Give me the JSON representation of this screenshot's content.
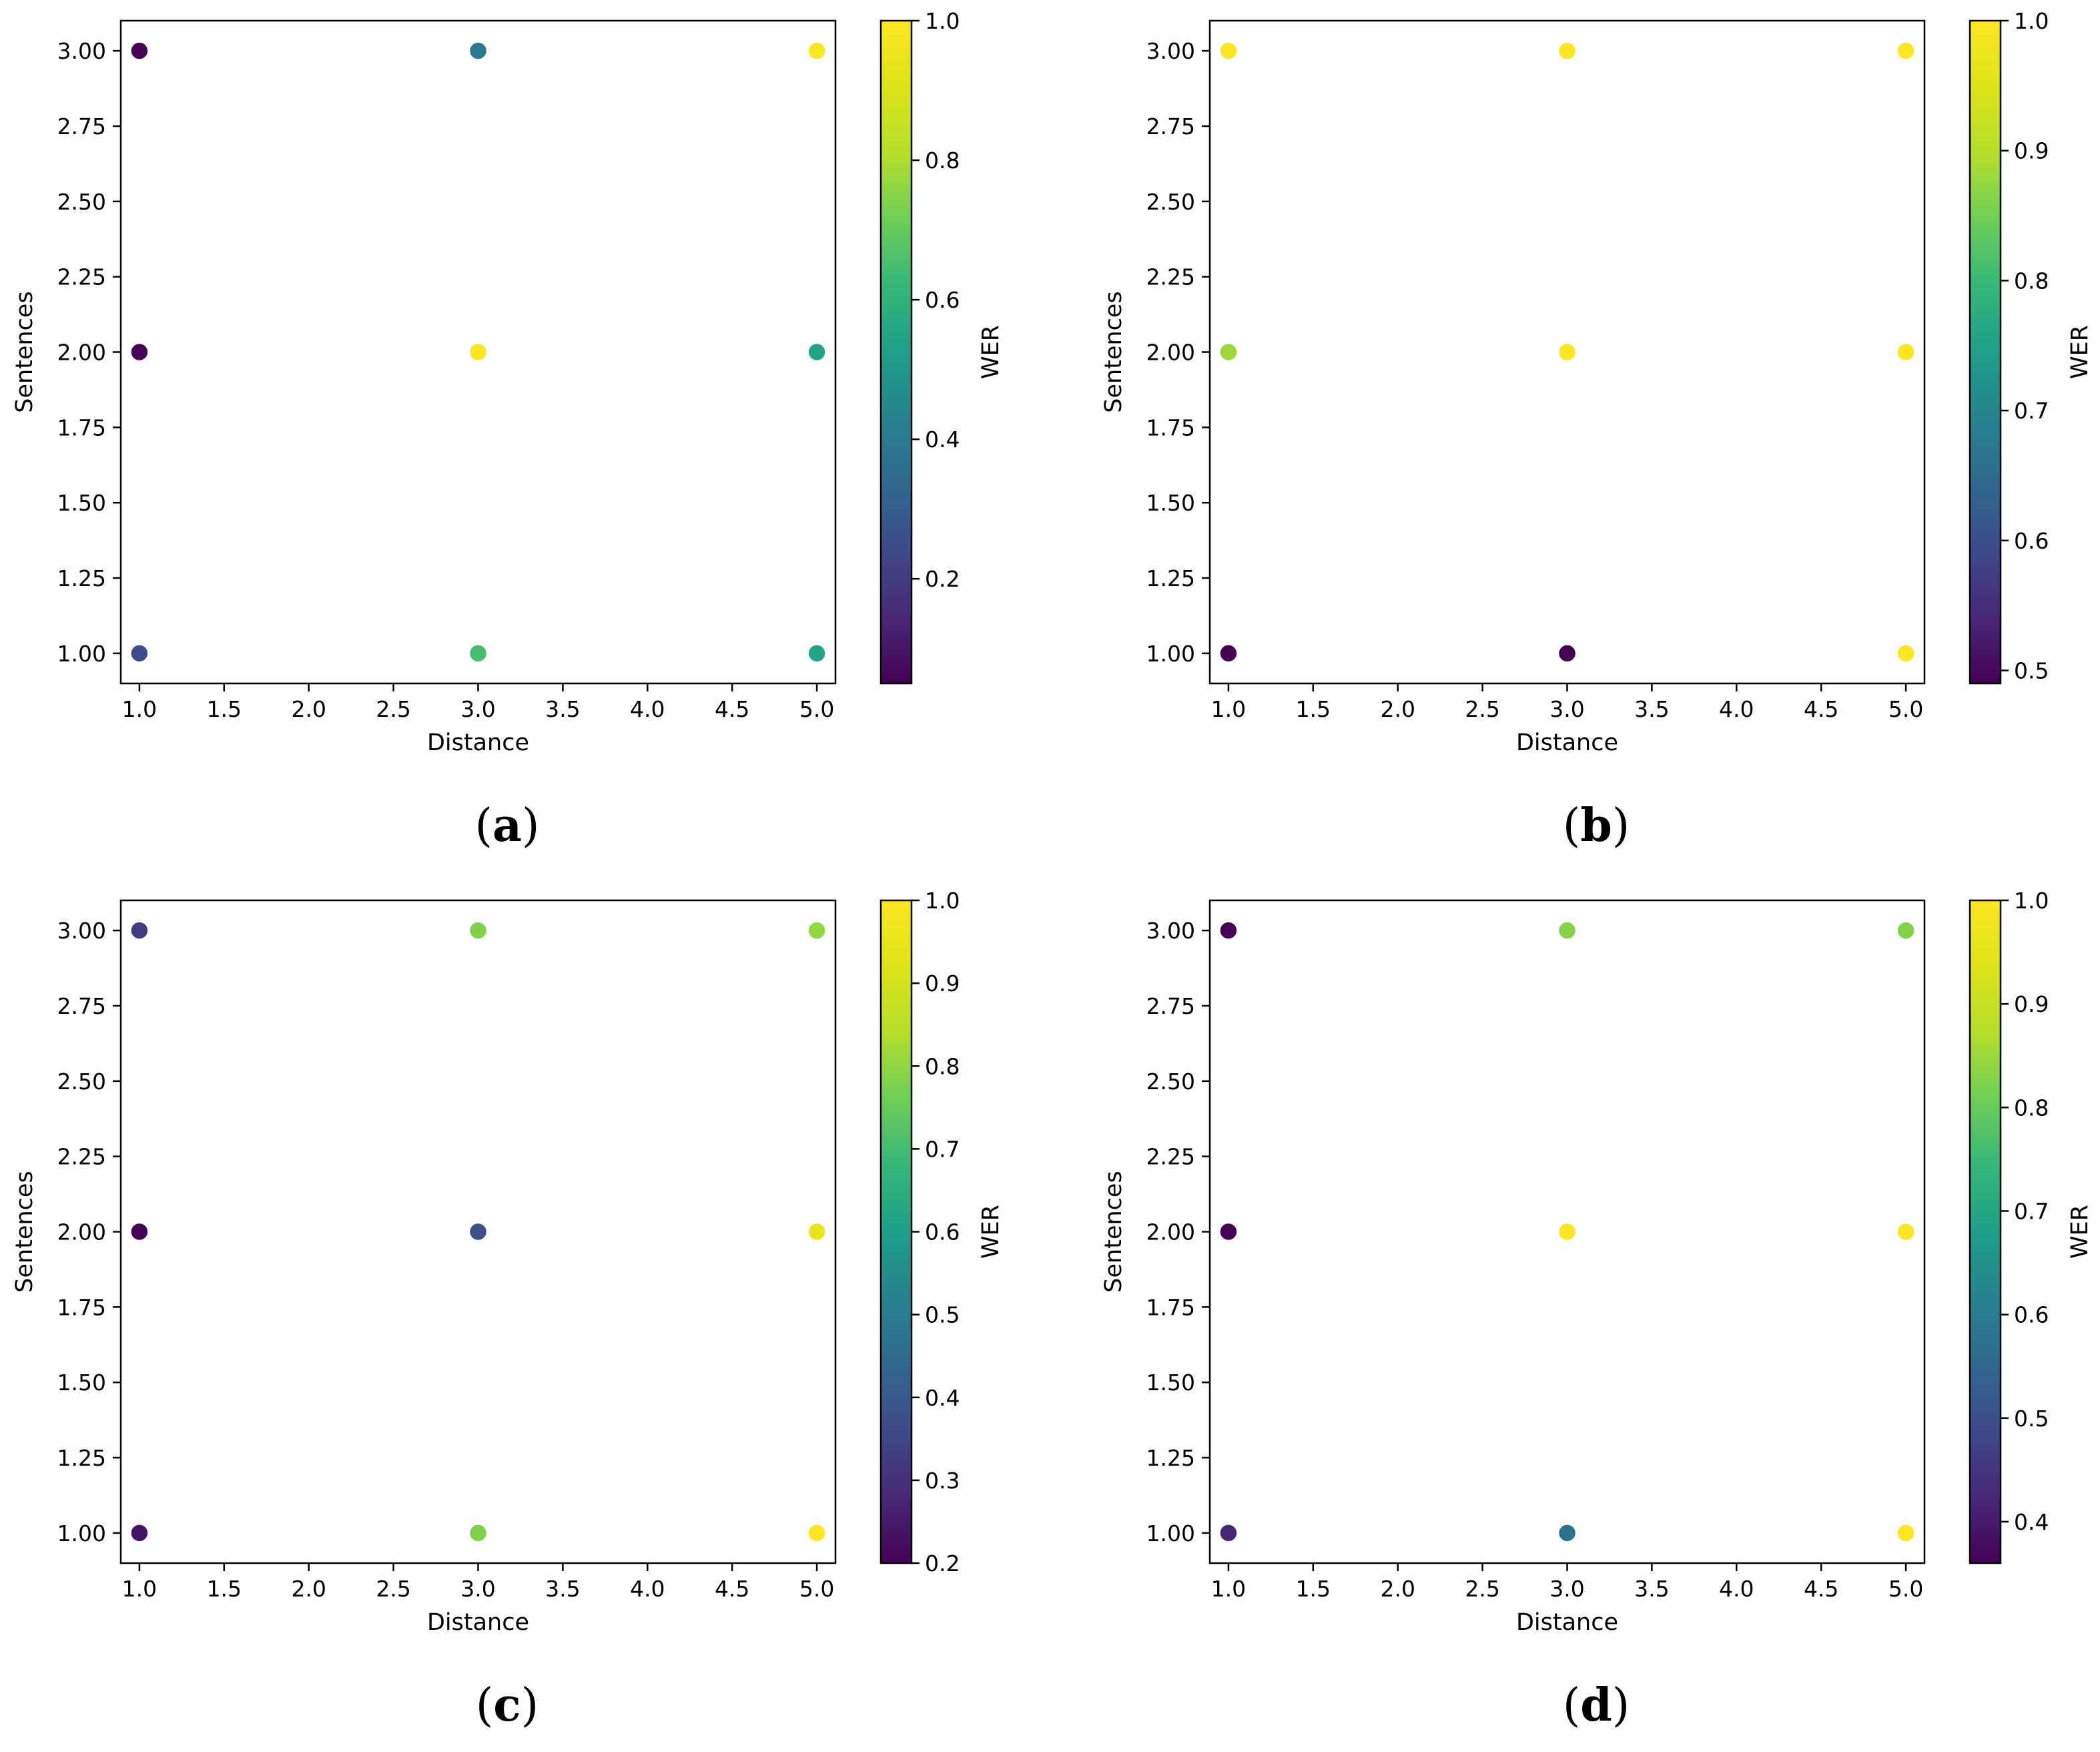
{
  "colors": {
    "background": "#ffffff",
    "axes": "#000000",
    "colormap": "viridis"
  },
  "chart_data": [
    {
      "type": "scatter",
      "caption": "(a)",
      "caption_letter": "a",
      "xlabel": "Distance",
      "ylabel": "Sentences",
      "colorbar_label": "WER",
      "xlim": [
        0.89,
        5.11
      ],
      "ylim": [
        0.9,
        3.1
      ],
      "xticks": [
        1.0,
        1.5,
        2.0,
        2.5,
        3.0,
        3.5,
        4.0,
        4.5,
        5.0
      ],
      "xtick_labels": [
        "1.0",
        "1.5",
        "2.0",
        "2.5",
        "3.0",
        "3.5",
        "4.0",
        "4.5",
        "5.0"
      ],
      "yticks": [
        1.0,
        1.25,
        1.5,
        1.75,
        2.0,
        2.25,
        2.5,
        2.75,
        3.0
      ],
      "ytick_labels": [
        "1.00",
        "1.25",
        "1.50",
        "1.75",
        "2.00",
        "2.25",
        "2.50",
        "2.75",
        "3.00"
      ],
      "clim": [
        0.05,
        1.0
      ],
      "cticks": [
        0.2,
        0.4,
        0.6,
        0.8,
        1.0
      ],
      "ctick_labels": [
        "0.2",
        "0.4",
        "0.6",
        "0.8",
        "1.0"
      ],
      "points": [
        {
          "x": 1,
          "y": 3,
          "wer": 0.05
        },
        {
          "x": 1,
          "y": 2,
          "wer": 0.05
        },
        {
          "x": 1,
          "y": 1,
          "wer": 0.25
        },
        {
          "x": 3,
          "y": 3,
          "wer": 0.4
        },
        {
          "x": 3,
          "y": 2,
          "wer": 1.0
        },
        {
          "x": 3,
          "y": 1,
          "wer": 0.65
        },
        {
          "x": 5,
          "y": 3,
          "wer": 1.0
        },
        {
          "x": 5,
          "y": 2,
          "wer": 0.55
        },
        {
          "x": 5,
          "y": 1,
          "wer": 0.55
        }
      ]
    },
    {
      "type": "scatter",
      "caption": "(b)",
      "caption_letter": "b",
      "xlabel": "Distance",
      "ylabel": "Sentences",
      "colorbar_label": "WER",
      "xlim": [
        0.89,
        5.11
      ],
      "ylim": [
        0.9,
        3.1
      ],
      "xticks": [
        1.0,
        1.5,
        2.0,
        2.5,
        3.0,
        3.5,
        4.0,
        4.5,
        5.0
      ],
      "xtick_labels": [
        "1.0",
        "1.5",
        "2.0",
        "2.5",
        "3.0",
        "3.5",
        "4.0",
        "4.5",
        "5.0"
      ],
      "yticks": [
        1.0,
        1.25,
        1.5,
        1.75,
        2.0,
        2.25,
        2.5,
        2.75,
        3.0
      ],
      "ytick_labels": [
        "1.00",
        "1.25",
        "1.50",
        "1.75",
        "2.00",
        "2.25",
        "2.50",
        "2.75",
        "3.00"
      ],
      "clim": [
        0.49,
        1.0
      ],
      "cticks": [
        0.5,
        0.6,
        0.7,
        0.8,
        0.9,
        1.0
      ],
      "ctick_labels": [
        "0.5",
        "0.6",
        "0.7",
        "0.8",
        "0.9",
        "1.0"
      ],
      "points": [
        {
          "x": 1,
          "y": 3,
          "wer": 1.0
        },
        {
          "x": 1,
          "y": 2,
          "wer": 0.88
        },
        {
          "x": 1,
          "y": 1,
          "wer": 0.49
        },
        {
          "x": 3,
          "y": 3,
          "wer": 1.0
        },
        {
          "x": 3,
          "y": 2,
          "wer": 1.0
        },
        {
          "x": 3,
          "y": 1,
          "wer": 0.49
        },
        {
          "x": 5,
          "y": 3,
          "wer": 1.0
        },
        {
          "x": 5,
          "y": 2,
          "wer": 1.0
        },
        {
          "x": 5,
          "y": 1,
          "wer": 1.0
        }
      ]
    },
    {
      "type": "scatter",
      "caption": "(c)",
      "caption_letter": "c",
      "xlabel": "Distance",
      "ylabel": "Sentences",
      "colorbar_label": "WER",
      "xlim": [
        0.89,
        5.11
      ],
      "ylim": [
        0.9,
        3.1
      ],
      "xticks": [
        1.0,
        1.5,
        2.0,
        2.5,
        3.0,
        3.5,
        4.0,
        4.5,
        5.0
      ],
      "xtick_labels": [
        "1.0",
        "1.5",
        "2.0",
        "2.5",
        "3.0",
        "3.5",
        "4.0",
        "4.5",
        "5.0"
      ],
      "yticks": [
        1.0,
        1.25,
        1.5,
        1.75,
        2.0,
        2.25,
        2.5,
        2.75,
        3.0
      ],
      "ytick_labels": [
        "1.00",
        "1.25",
        "1.50",
        "1.75",
        "2.00",
        "2.25",
        "2.50",
        "2.75",
        "3.00"
      ],
      "clim": [
        0.2,
        1.0
      ],
      "cticks": [
        0.2,
        0.3,
        0.4,
        0.5,
        0.6,
        0.7,
        0.8,
        0.9,
        1.0
      ],
      "ctick_labels": [
        "0.2",
        "0.3",
        "0.4",
        "0.5",
        "0.6",
        "0.7",
        "0.8",
        "0.9",
        "1.0"
      ],
      "points": [
        {
          "x": 1,
          "y": 3,
          "wer": 0.33
        },
        {
          "x": 1,
          "y": 2,
          "wer": 0.2
        },
        {
          "x": 1,
          "y": 1,
          "wer": 0.24
        },
        {
          "x": 3,
          "y": 3,
          "wer": 0.78
        },
        {
          "x": 3,
          "y": 2,
          "wer": 0.38
        },
        {
          "x": 3,
          "y": 1,
          "wer": 0.78
        },
        {
          "x": 5,
          "y": 3,
          "wer": 0.8
        },
        {
          "x": 5,
          "y": 2,
          "wer": 0.95
        },
        {
          "x": 5,
          "y": 1,
          "wer": 1.0
        }
      ]
    },
    {
      "type": "scatter",
      "caption": "(d)",
      "caption_letter": "d",
      "xlabel": "Distance",
      "ylabel": "Sentences",
      "colorbar_label": "WER",
      "xlim": [
        0.89,
        5.11
      ],
      "ylim": [
        0.9,
        3.1
      ],
      "xticks": [
        1.0,
        1.5,
        2.0,
        2.5,
        3.0,
        3.5,
        4.0,
        4.5,
        5.0
      ],
      "xtick_labels": [
        "1.0",
        "1.5",
        "2.0",
        "2.5",
        "3.0",
        "3.5",
        "4.0",
        "4.5",
        "5.0"
      ],
      "yticks": [
        1.0,
        1.25,
        1.5,
        1.75,
        2.0,
        2.25,
        2.5,
        2.75,
        3.0
      ],
      "ytick_labels": [
        "1.00",
        "1.25",
        "1.50",
        "1.75",
        "2.00",
        "2.25",
        "2.50",
        "2.75",
        "3.00"
      ],
      "clim": [
        0.36,
        1.0
      ],
      "cticks": [
        0.4,
        0.5,
        0.6,
        0.7,
        0.8,
        0.9,
        1.0
      ],
      "ctick_labels": [
        "0.4",
        "0.5",
        "0.6",
        "0.7",
        "0.8",
        "0.9",
        "1.0"
      ],
      "points": [
        {
          "x": 1,
          "y": 3,
          "wer": 0.36
        },
        {
          "x": 1,
          "y": 2,
          "wer": 0.36
        },
        {
          "x": 1,
          "y": 1,
          "wer": 0.42
        },
        {
          "x": 3,
          "y": 3,
          "wer": 0.83
        },
        {
          "x": 3,
          "y": 2,
          "wer": 1.0
        },
        {
          "x": 3,
          "y": 1,
          "wer": 0.58
        },
        {
          "x": 5,
          "y": 3,
          "wer": 0.83
        },
        {
          "x": 5,
          "y": 2,
          "wer": 1.0
        },
        {
          "x": 5,
          "y": 1,
          "wer": 1.0
        }
      ]
    }
  ]
}
